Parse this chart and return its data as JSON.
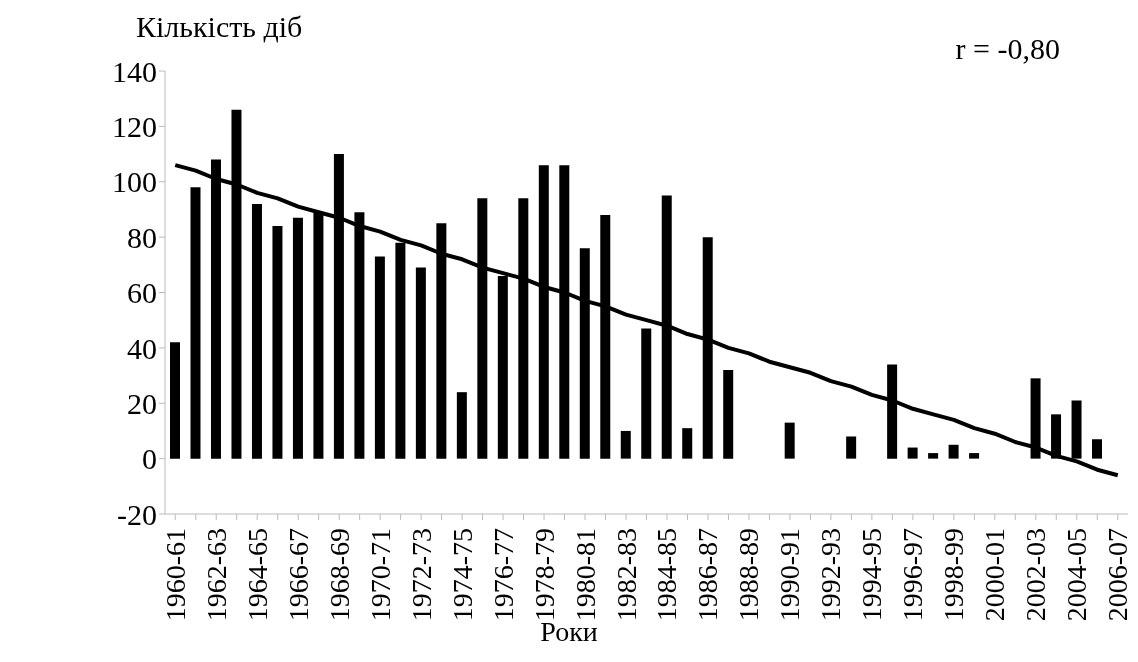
{
  "chart_data": {
    "type": "bar",
    "ylabel": "Кількість діб",
    "xlabel": "Роки",
    "annotations": [
      "r = -0,80"
    ],
    "categories": [
      "1960-61",
      null,
      "1962-63",
      null,
      "1964-65",
      null,
      "1966-67",
      null,
      "1968-69",
      null,
      "1970-71",
      null,
      "1972-73",
      null,
      "1974-75",
      null,
      "1976-77",
      null,
      "1978-79",
      null,
      "1980-81",
      null,
      "1982-83",
      null,
      "1984-85",
      null,
      "1986-87",
      null,
      "1988-89",
      null,
      "1990-91",
      null,
      "1992-93",
      null,
      "1994-95",
      null,
      "1996-97",
      null,
      "1998-99",
      null,
      "2000-01",
      null,
      "2002-03",
      null,
      "2004-05",
      null,
      "2006-07"
    ],
    "series": [
      {
        "color": "#000000",
        "values": [
          42,
          98,
          108,
          126,
          92,
          84,
          87,
          89,
          110,
          89,
          73,
          78,
          69,
          85,
          24,
          94,
          66,
          94,
          106,
          106,
          76,
          88,
          10,
          47,
          95,
          11,
          80,
          32,
          0,
          0,
          13,
          0,
          0,
          8,
          0,
          34,
          4,
          2,
          5,
          2,
          0,
          0,
          29,
          16,
          21,
          7,
          0
        ]
      },
      {
        "type": "line",
        "color": "#000000",
        "values": [
          106,
          104,
          101,
          99,
          96,
          94,
          91,
          89,
          87,
          84,
          82,
          79,
          77,
          74,
          72,
          69,
          67,
          65,
          62,
          60,
          57,
          55,
          52,
          50,
          48,
          45,
          43,
          40,
          38,
          35,
          33,
          31,
          28,
          26,
          23,
          21,
          18,
          16,
          14,
          11,
          9,
          6,
          4,
          1,
          -1,
          -4,
          -6
        ]
      }
    ],
    "ylim": [
      -20,
      140
    ],
    "yticks": [
      -20,
      0,
      20,
      40,
      60,
      80,
      100,
      120,
      140
    ],
    "legend": false
  }
}
